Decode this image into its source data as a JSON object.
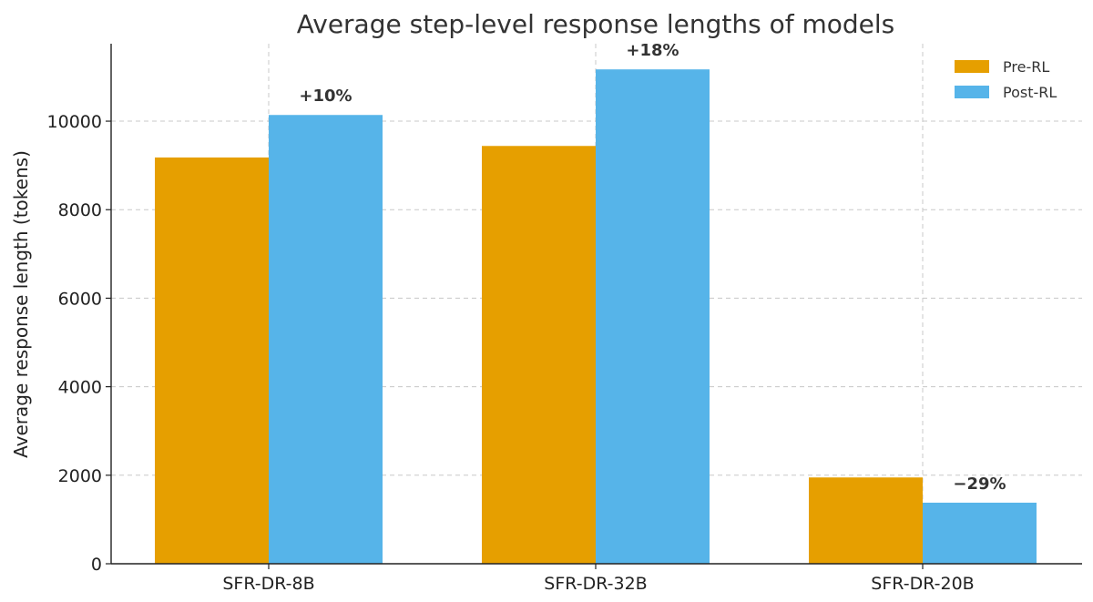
{
  "chart_data": {
    "type": "bar",
    "title": "Average step-level response lengths of models",
    "xlabel": "",
    "ylabel": "Average response length (tokens)",
    "categories": [
      "SFR-DR-8B",
      "SFR-DR-32B",
      "SFR-DR-20B"
    ],
    "series": [
      {
        "name": "Pre-RL",
        "color": "#E69F00",
        "values": [
          9180,
          9440,
          1950
        ]
      },
      {
        "name": "Post-RL",
        "color": "#56B4E9",
        "values": [
          10140,
          11170,
          1380
        ]
      }
    ],
    "annotations": [
      "+10%",
      "+18%",
      "−29%"
    ],
    "ylim": [
      0,
      11750
    ],
    "yticks": [
      0,
      2000,
      4000,
      6000,
      8000,
      10000
    ],
    "ytick_labels": [
      "0",
      "2000",
      "4000",
      "6000",
      "8000",
      "10000"
    ],
    "grid": true,
    "legend_position": "top-right"
  }
}
